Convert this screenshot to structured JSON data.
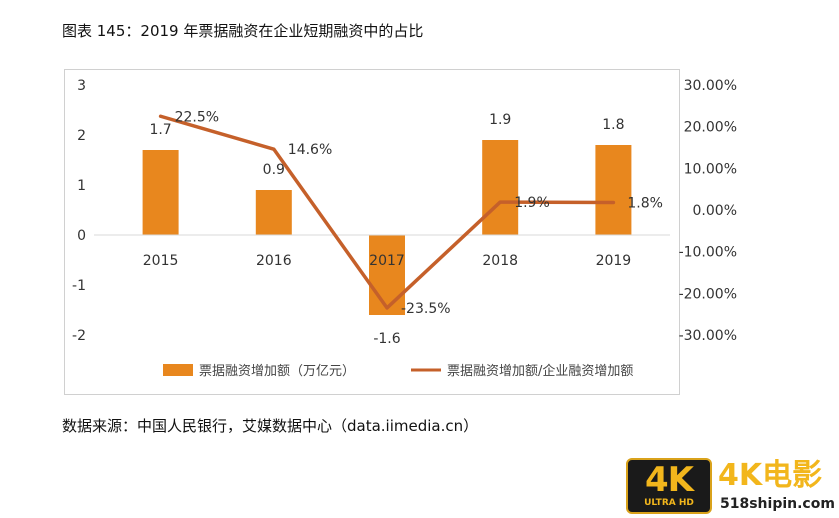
{
  "title": "图表 145：2019 年票据融资在企业短期融资中的占比",
  "source": "数据来源：中国人民银行，艾媒数据中心（data.iimedia.cn）",
  "watermark": {
    "badge_main": "4K",
    "badge_sub": "ULTRA HD",
    "name": "4K电影",
    "url": "518shipin.com"
  },
  "chart_data": {
    "type": "bar",
    "categories": [
      "2015",
      "2016",
      "2017",
      "2018",
      "2019"
    ],
    "series": [
      {
        "name": "票据融资增加额（万亿元）",
        "type": "bar",
        "axis": "left",
        "values": [
          1.7,
          0.9,
          -1.6,
          1.9,
          1.8
        ],
        "labels": [
          "1.7",
          "0.9",
          "-1.6",
          "1.9",
          "1.8"
        ],
        "color": "#e8871e"
      },
      {
        "name": "票据融资增加额/企业融资增加额",
        "type": "line",
        "axis": "right",
        "values": [
          22.5,
          14.6,
          -23.5,
          1.9,
          1.8
        ],
        "labels": [
          "22.5%",
          "14.6%",
          "-23.5%",
          "1.9%",
          "1.8%"
        ],
        "color": "#c5602a"
      }
    ],
    "y_left": {
      "min": -2,
      "max": 3,
      "ticks": [
        "-2",
        "-1",
        "0",
        "1",
        "2",
        "3"
      ]
    },
    "y_right": {
      "min": -30,
      "max": 30,
      "ticks": [
        "-30.00%",
        "-20.00%",
        "-10.00%",
        "0.00%",
        "10.00%",
        "20.00%",
        "30.00%"
      ]
    },
    "grid": false,
    "legend_position": "bottom"
  }
}
